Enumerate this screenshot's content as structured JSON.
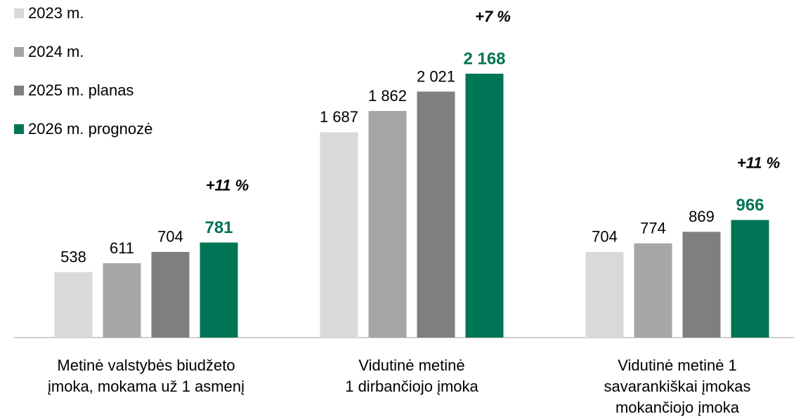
{
  "chart_data": {
    "type": "bar",
    "categories": [
      "Metinė valstybės biudžeto\nįmoka, mokama už 1 asmenį",
      "Vidutinė metinė\n1 dirbančiojo įmoka",
      "Vidutinė metinė 1\nsavarankiškai įmokas\nmokančiojo įmoka"
    ],
    "series": [
      {
        "name": "2023 m.",
        "color": "#d9d9d9",
        "values": [
          538,
          1687,
          704
        ],
        "value_labels": [
          "538",
          "1 687",
          "704"
        ]
      },
      {
        "name": "2024 m.",
        "color": "#a6a6a6",
        "values": [
          611,
          1862,
          774
        ],
        "value_labels": [
          "611",
          "1 862",
          "774"
        ]
      },
      {
        "name": "2025 m. planas",
        "color": "#7f7f7f",
        "values": [
          704,
          2021,
          869
        ],
        "value_labels": [
          "704",
          "2 021",
          "869"
        ]
      },
      {
        "name": "2026 m. prognozė",
        "color": "#007555",
        "values": [
          781,
          2168,
          966
        ],
        "value_labels": [
          "781",
          "2 168",
          "966"
        ]
      }
    ],
    "annotations": [
      "+11 %",
      "+7 %",
      "+11 %"
    ],
    "legend": "top-left"
  }
}
